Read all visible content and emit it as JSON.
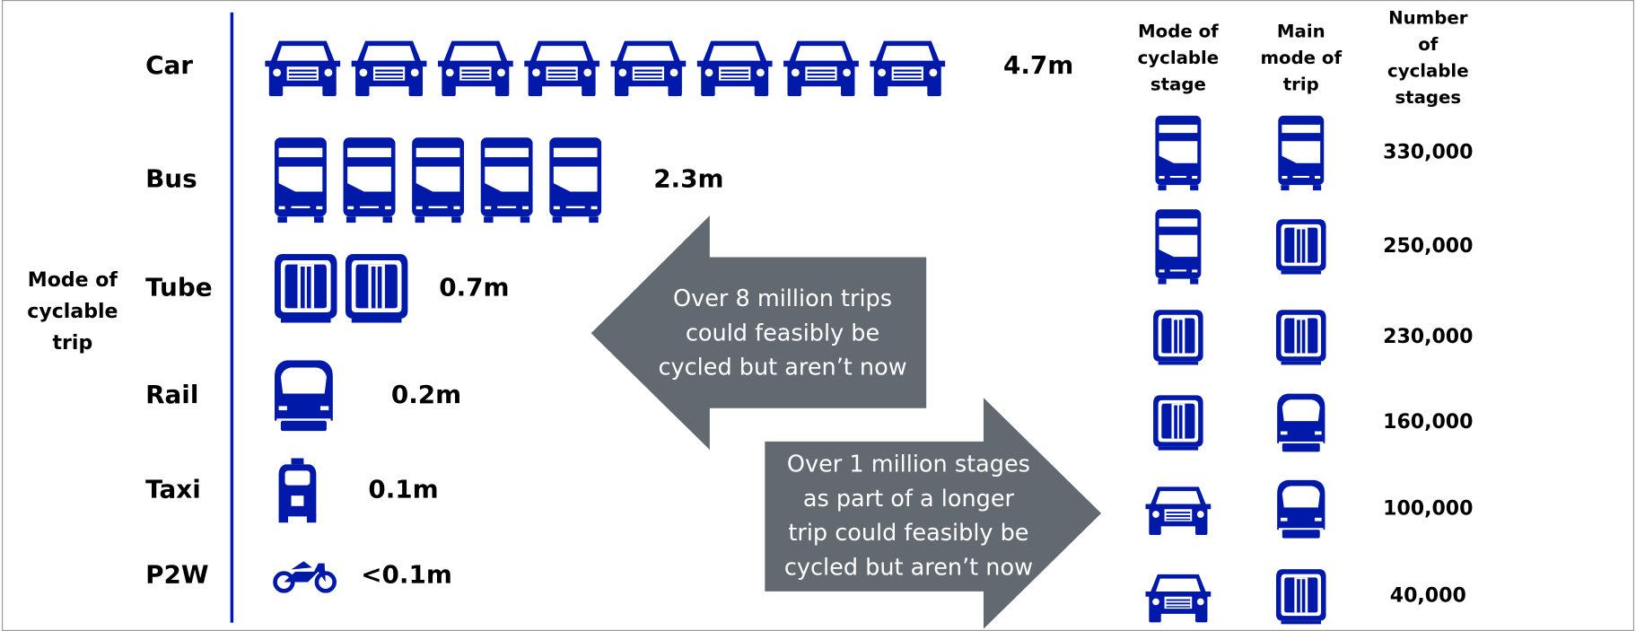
{
  "axis_label": [
    "Mode of",
    "cyclable",
    "trip"
  ],
  "rows": [
    {
      "label": "Car",
      "value": "4.7m"
    },
    {
      "label": "Bus",
      "value": "2.3m"
    },
    {
      "label": "Tube",
      "value": "0.7m"
    },
    {
      "label": "Rail",
      "value": "0.2m"
    },
    {
      "label": "Taxi",
      "value": "0.1m"
    },
    {
      "label": "P2W",
      "value": "<0.1m"
    }
  ],
  "trips_callout": [
    "Over 8 million trips",
    "could feasibly be",
    "cycled but aren’t now"
  ],
  "stages_callout": [
    "Over 1 million stages",
    "as part of a longer",
    "trip could feasibly be",
    "cycled but aren’t now"
  ],
  "table": {
    "headers": [
      [
        "Mode of",
        "cyclable",
        "stage"
      ],
      [
        "Main",
        "mode of",
        "trip"
      ],
      [
        "Number",
        "of",
        "cyclable",
        "stages"
      ]
    ],
    "rows": [
      "330,000",
      "250,000",
      "230,000",
      "160,000",
      "100,000",
      "40,000"
    ]
  }
}
